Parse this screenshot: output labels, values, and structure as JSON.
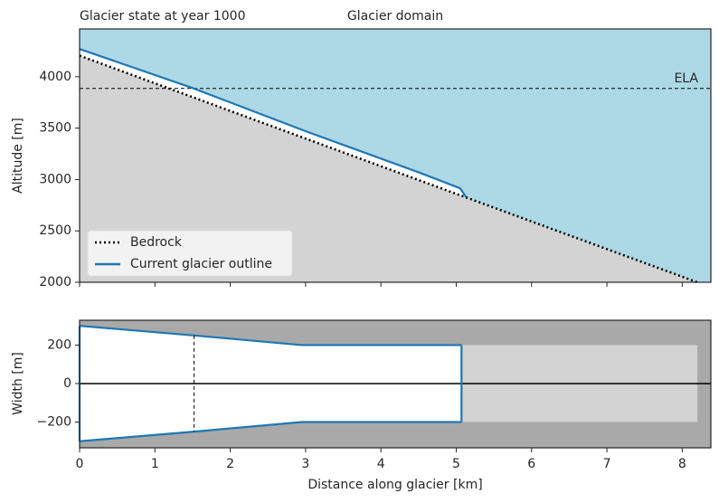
{
  "chart_data": [
    {
      "type": "profile",
      "title": "Glacier state at year 1000",
      "subtitle": "Glacier domain",
      "y_label": "Altitude [m]",
      "xlim": [
        0,
        8.38
      ],
      "ylim": [
        2000,
        4465
      ],
      "xticks": [
        0,
        1,
        2,
        3,
        4,
        5,
        6,
        7,
        8
      ],
      "yticks": [
        2000,
        2500,
        3000,
        3500,
        4000
      ],
      "ela": 3886,
      "ela_label": "ELA",
      "legend": "lower left",
      "background": "#add8e6",
      "fill": "#d3d3d3",
      "series": [
        {
          "name": "Bedrock",
          "color": "#000000",
          "style": "dotted",
          "x": [
            0,
            8.2
          ],
          "values": [
            4205,
            2000
          ]
        },
        {
          "name": "Current glacier outline",
          "color": "#1f77b4",
          "style": "solid",
          "x": [
            0,
            1.5,
            3,
            4.5,
            5.05,
            5.13
          ],
          "values": [
            4270,
            3890,
            3470,
            3070,
            2915,
            2830
          ]
        }
      ]
    },
    {
      "type": "width",
      "x_label": "Distance along glacier [km]",
      "y_label": "Width [m]",
      "xlim": [
        0,
        8.38
      ],
      "ylim": [
        -334,
        329
      ],
      "xticks": [
        0,
        1,
        2,
        3,
        4,
        5,
        6,
        7,
        8
      ],
      "yticks": [
        {
          "value": -200,
          "label": "−200"
        },
        0,
        200
      ],
      "background": "#a9a9a9",
      "domain_color": "#d3d3d3",
      "domain_x": [
        5.07,
        8.2
      ],
      "domain_width": [
        -200,
        200
      ],
      "ela_x": 1.52,
      "x": [
        0,
        1.52,
        2.95,
        5.07
      ],
      "series": [
        {
          "color": "#1f77b4",
          "values": [
            300,
            250,
            200,
            200
          ]
        },
        {
          "color": "#1f77b4",
          "values": [
            -300,
            -250,
            -200,
            -200
          ]
        }
      ]
    }
  ]
}
